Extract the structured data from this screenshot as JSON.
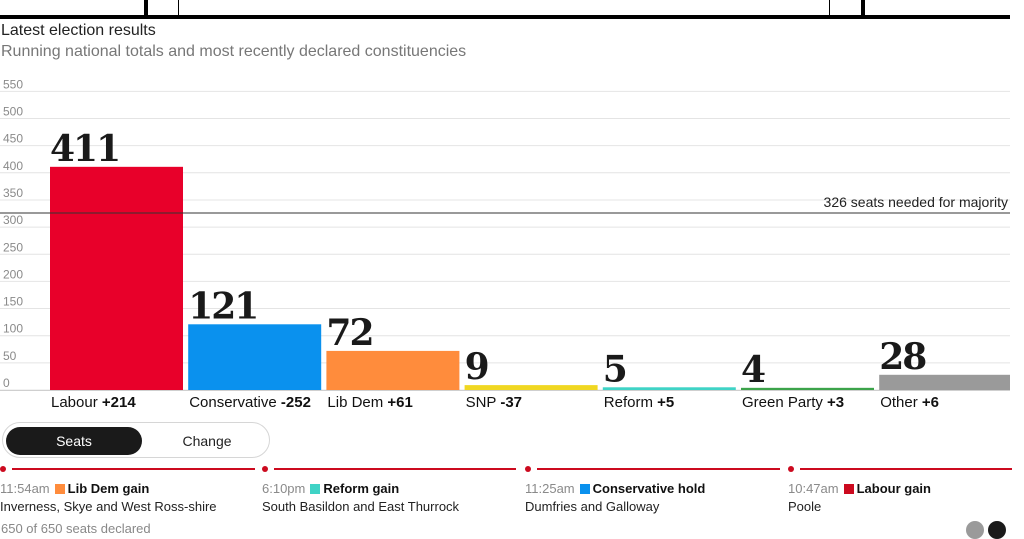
{
  "header": {
    "title": "Latest election results",
    "subtitle": "Running national totals and most recently declared constituencies"
  },
  "chart_data": {
    "type": "bar",
    "categories": [
      "Labour",
      "Conservative",
      "Lib Dem",
      "SNP",
      "Reform",
      "Green Party",
      "Other"
    ],
    "values": [
      411,
      121,
      72,
      9,
      5,
      4,
      28
    ],
    "changes": [
      "+214",
      "-252",
      "+61",
      "-37",
      "+5",
      "+3",
      "+6"
    ],
    "colors": [
      "#e8002a",
      "#0a91ee",
      "#ff8c3c",
      "#f0d722",
      "#3fd3c6",
      "#3ca34a",
      "#9a9a9a"
    ],
    "yticks": [
      0,
      50,
      100,
      150,
      200,
      250,
      300,
      350,
      400,
      450,
      500,
      550
    ],
    "ylim": [
      0,
      550
    ],
    "grid": true,
    "reference_line": {
      "value": 326,
      "label": "326 seats needed for majority"
    }
  },
  "toggle": {
    "options": [
      "Seats",
      "Change"
    ],
    "selected": "Seats"
  },
  "recent": [
    {
      "time": "11:54am",
      "result": "Lib Dem gain",
      "color": "#ff8c3c",
      "seat": "Inverness, Skye and West Ross-shire"
    },
    {
      "time": "6:10pm",
      "result": "Reform gain",
      "color": "#3fd3c6",
      "seat": "South Basildon and East Thurrock"
    },
    {
      "time": "11:25am",
      "result": "Conservative hold",
      "color": "#0a91ee",
      "seat": "Dumfries and Galloway"
    },
    {
      "time": "10:47am",
      "result": "Labour gain",
      "color": "#cc0a1f",
      "seat": "Poole"
    }
  ],
  "timeline_color": "#cc0a1f",
  "footnote": "650 of 650 seats declared"
}
